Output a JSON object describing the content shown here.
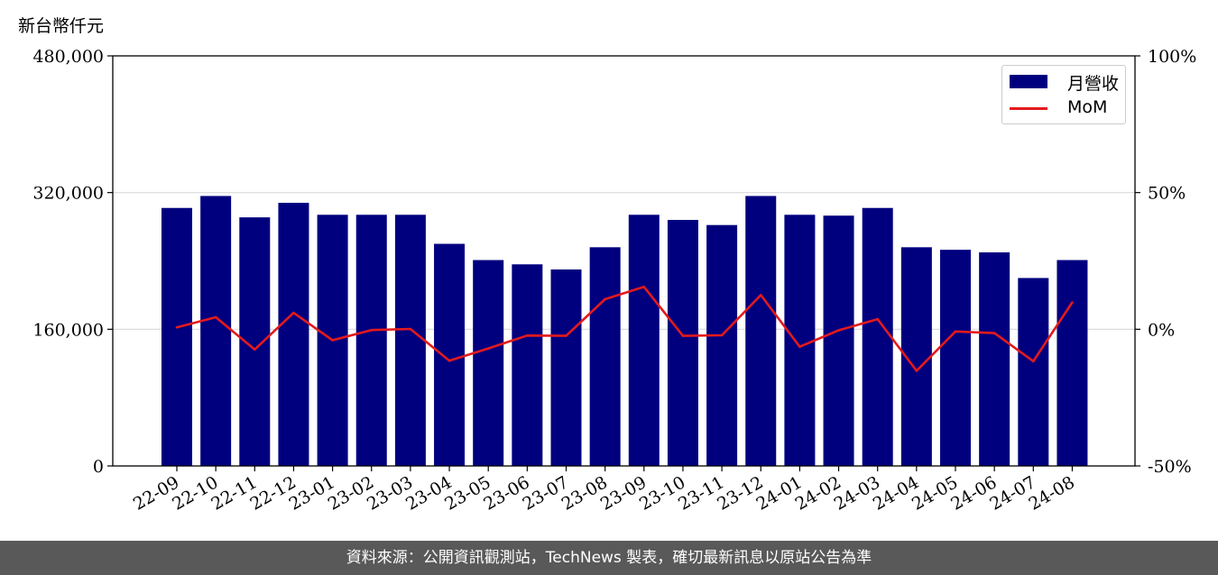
{
  "unit_label": "新台幣仟元",
  "footer_text": "資料來源：公開資訊觀測站，TechNews 製表，確切最新訊息以原站公告為準",
  "colors": {
    "bar": "#00007f",
    "line": "#e31a1c",
    "grid": "#d9d9d9",
    "footer_bg": "#595959"
  },
  "chart_data": {
    "type": "bar",
    "categories": [
      "22-09",
      "22-10",
      "22-11",
      "22-12",
      "23-01",
      "23-02",
      "23-03",
      "23-04",
      "23-05",
      "23-06",
      "23-07",
      "23-08",
      "23-09",
      "23-10",
      "23-11",
      "23-12",
      "24-01",
      "24-02",
      "24-03",
      "24-04",
      "24-05",
      "24-06",
      "24-07",
      "24-08"
    ],
    "series": [
      {
        "name": "月營收",
        "type": "bar",
        "axis": "left",
        "values": [
          302000,
          316000,
          291000,
          308000,
          294000,
          294000,
          294000,
          260000,
          241000,
          236000,
          230000,
          256000,
          294000,
          288000,
          282000,
          316000,
          294000,
          293000,
          302000,
          256000,
          253000,
          250000,
          220000,
          241000
        ]
      },
      {
        "name": "MoM",
        "type": "line",
        "axis": "right",
        "values": [
          0.7,
          4.4,
          -7.4,
          6.0,
          -4.0,
          -0.3,
          0.1,
          -11.5,
          -7.0,
          -2.3,
          -2.4,
          11.0,
          15.5,
          -2.4,
          -2.2,
          12.5,
          -6.4,
          -0.4,
          3.7,
          -15.2,
          -0.8,
          -1.4,
          -11.7,
          9.8
        ]
      }
    ],
    "left_axis": {
      "ylim": [
        0,
        480000
      ],
      "ticks": [
        "0",
        "160,000",
        "320,000",
        "480,000"
      ],
      "tick_values": [
        0,
        160000,
        320000,
        480000
      ]
    },
    "right_axis": {
      "ylim": [
        -50,
        100
      ],
      "ticks": [
        "-50%",
        "0%",
        "50%",
        "100%"
      ],
      "tick_values": [
        -50,
        0,
        50,
        100
      ]
    },
    "grid": true,
    "legend": {
      "position": "top-right",
      "entries": [
        "月營收",
        "MoM"
      ]
    }
  }
}
